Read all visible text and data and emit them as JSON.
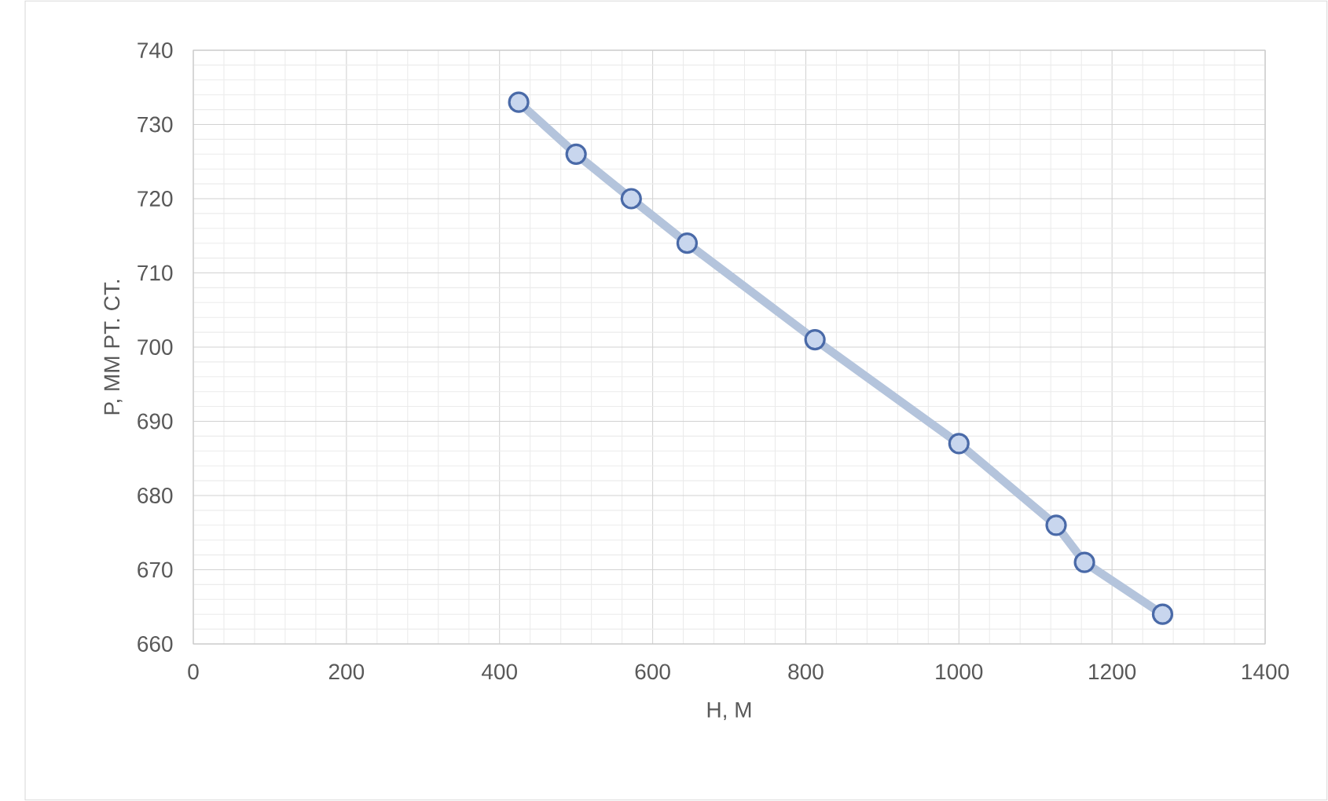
{
  "chart_data": {
    "type": "line",
    "xlabel": "H, M",
    "ylabel": "P, MM PT. CT.",
    "x": [
      425,
      500,
      572,
      645,
      812,
      1000,
      1127,
      1164,
      1266
    ],
    "series": [
      {
        "color": "#b4c4dc",
        "values": [
          733,
          726,
          720,
          714,
          701,
          687,
          676,
          671,
          664
        ]
      }
    ],
    "marker": "circle",
    "line_style": "solid",
    "grid": true,
    "xlim": [
      0,
      1400
    ],
    "xticks": [
      0,
      200,
      400,
      600,
      800,
      1000,
      1200,
      1400
    ],
    "ylim": [
      660,
      740
    ],
    "yticks": [
      660,
      670,
      680,
      690,
      700,
      710,
      720,
      730,
      740
    ]
  }
}
